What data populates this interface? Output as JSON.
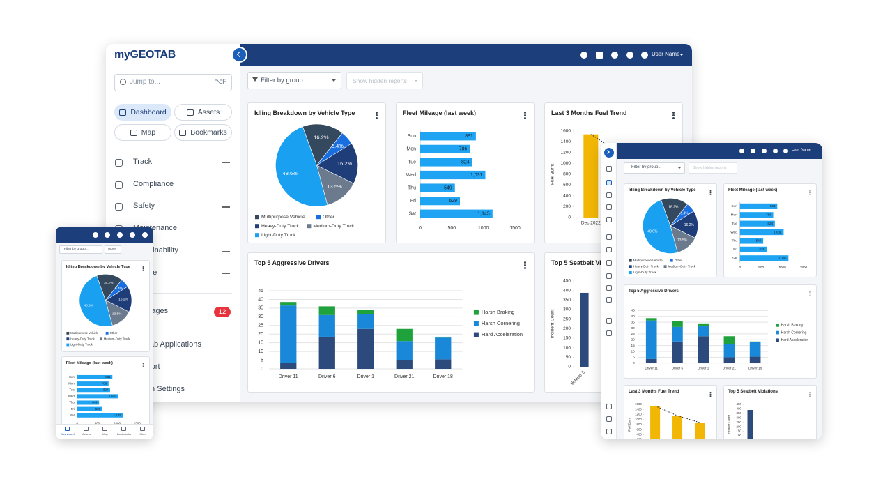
{
  "app": {
    "logo": "myGEOTAB",
    "user": "User Name",
    "filter": "Filter by group...",
    "hidden_reports": "Show hidden reports"
  },
  "sidebar": {
    "search": "Jump to...",
    "shortcut": "⌥F",
    "buttons": [
      "Dashboard",
      "Assets",
      "Map",
      "Bookmarks"
    ],
    "menu": [
      "Track",
      "Compliance",
      "Safety",
      "Maintenance",
      "Sustainability",
      "People"
    ],
    "messages": "Messages",
    "badge": 12,
    "links": [
      "Geotab Applications",
      "Support",
      "Admin Settings"
    ]
  },
  "phone": {
    "more": "More",
    "tabs": [
      "Dashboard",
      "Assets",
      "Map",
      "Bookmarks",
      "More"
    ]
  },
  "chart_data": [
    {
      "type": "pie",
      "title": "Idling Breakdown by Vehicle Type",
      "categories": [
        "Multipurpose Vehicle",
        "Other",
        "Heavy-Duty Truck",
        "Medium-Duty Truck",
        "Light-Duty Truck"
      ],
      "values": [
        16.2,
        5.4,
        16.2,
        13.5,
        48.6
      ],
      "value_labels": [
        "16.2%",
        "5.4%",
        "16.2%",
        "13.5%",
        "48.6%"
      ],
      "colors": [
        "#34495e",
        "#1a6fe0",
        "#1f3d78",
        "#6b7a8c",
        "#1aa0f0"
      ]
    },
    {
      "type": "barh",
      "title": "Fleet Mileage (last week)",
      "categories": [
        "Sun",
        "Mon",
        "Tue",
        "Wed",
        "Thu",
        "Fri",
        "Sat"
      ],
      "values": [
        881,
        786,
        824,
        1031,
        549,
        629,
        1145
      ],
      "value_labels": [
        "881",
        "786",
        "824",
        "1,031",
        "549",
        "629",
        "1,145"
      ],
      "color": "#1ea4f2",
      "xlim": [
        0,
        1500
      ],
      "xticks": [
        0,
        500,
        1000,
        1500
      ]
    },
    {
      "type": "bar",
      "title": "Last 3 Months Fuel Trend",
      "ylabel": "Fuel Burnt",
      "categories": [
        "Dec 2022",
        null,
        null
      ],
      "values": [
        1540,
        1150,
        880
      ],
      "color": "#f2b705",
      "ylim": [
        0,
        1600
      ],
      "yticks": [
        0,
        200,
        400,
        600,
        800,
        1000,
        1200,
        1400,
        1600
      ],
      "trendline": true,
      "grid": false
    },
    {
      "type": "stacked_bar",
      "title": "Top 5 Aggressive Drivers",
      "categories": [
        "Driver 11",
        "Driver 6",
        "Driver 1",
        "Driver 21",
        "Driver 18"
      ],
      "series": [
        {
          "name": "Hard Acceleration",
          "color": "#2c4a7c",
          "values": [
            3.5,
            18.5,
            23,
            5,
            5.5
          ]
        },
        {
          "name": "Harsh Cornering",
          "color": "#1a88d8",
          "values": [
            33,
            12.5,
            8.5,
            11,
            12.5
          ]
        },
        {
          "name": "Harsh Braking",
          "color": "#1fa13c",
          "values": [
            2,
            5,
            2.5,
            7,
            0.5
          ]
        }
      ],
      "ylim": [
        0,
        45
      ],
      "yticks": [
        0,
        5,
        10,
        15,
        20,
        25,
        30,
        35,
        40,
        45
      ],
      "grid": true
    },
    {
      "type": "bar",
      "title": "Top 5 Seatbelt Violations",
      "ylabel": "Incident Count",
      "categories": [
        "Vehicle 8",
        null,
        null,
        null,
        null
      ],
      "values": [
        388,
        null,
        null,
        null,
        null
      ],
      "color": "#2c4a7c",
      "ylim": [
        0,
        450
      ],
      "yticks": [
        0,
        50,
        100,
        150,
        200,
        250,
        300,
        350,
        400,
        450
      ],
      "rotate_labels": true,
      "grid": false
    }
  ]
}
